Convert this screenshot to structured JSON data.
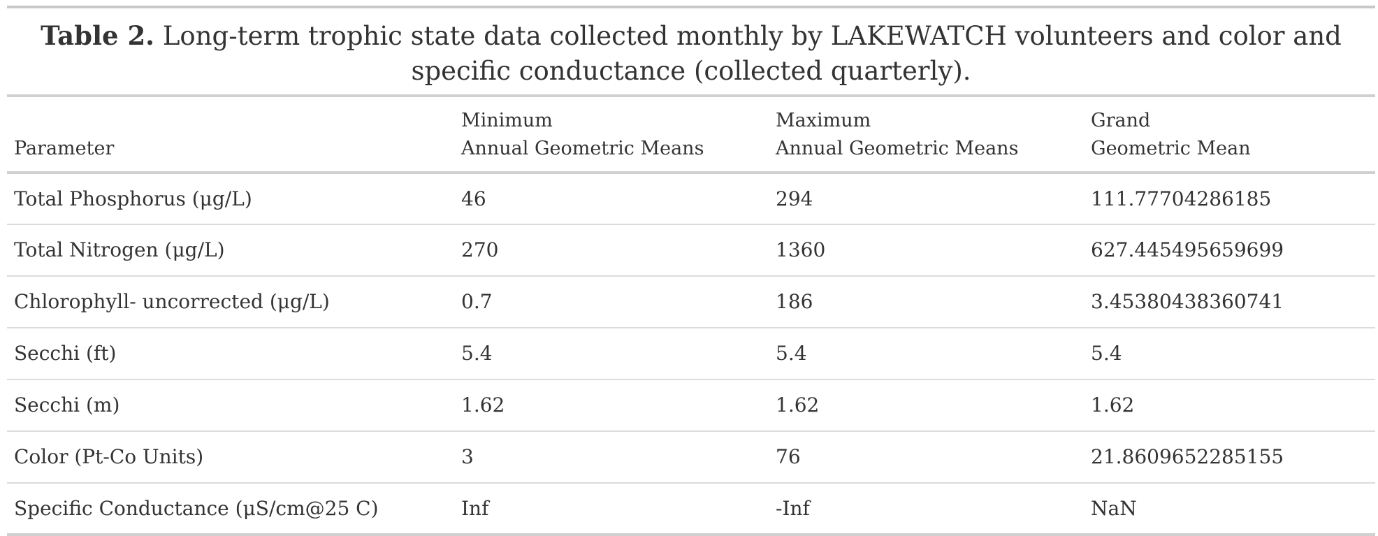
{
  "caption": {
    "label": "Table 2.",
    "text": "Long-term trophic state data collected monthly by LAKEWATCH volunteers and color and specific conductance (collected quarterly)."
  },
  "columns": [
    {
      "line1": "",
      "line2": "Parameter"
    },
    {
      "line1": "Minimum",
      "line2": "Annual Geometric Means"
    },
    {
      "line1": "Maximum",
      "line2": "Annual Geometric Means"
    },
    {
      "line1": "Grand",
      "line2": "Geometric Mean"
    }
  ],
  "rows": [
    [
      "Total Phosphorus (μg/L)",
      "46",
      "294",
      "111.77704286185"
    ],
    [
      "Total Nitrogen (μg/L)",
      "270",
      "1360",
      "627.445495659699"
    ],
    [
      "Chlorophyll- uncorrected (μg/L)",
      "0.7",
      "186",
      "3.45380438360741"
    ],
    [
      "Secchi (ft)",
      "5.4",
      "5.4",
      "5.4"
    ],
    [
      "Secchi (m)",
      "1.62",
      "1.62",
      "1.62"
    ],
    [
      "Color (Pt-Co Units)",
      "3",
      "76",
      "21.8609652285155"
    ],
    [
      "Specific Conductance (μS/cm@25 C)",
      "Inf",
      "-Inf",
      "NaN"
    ]
  ]
}
